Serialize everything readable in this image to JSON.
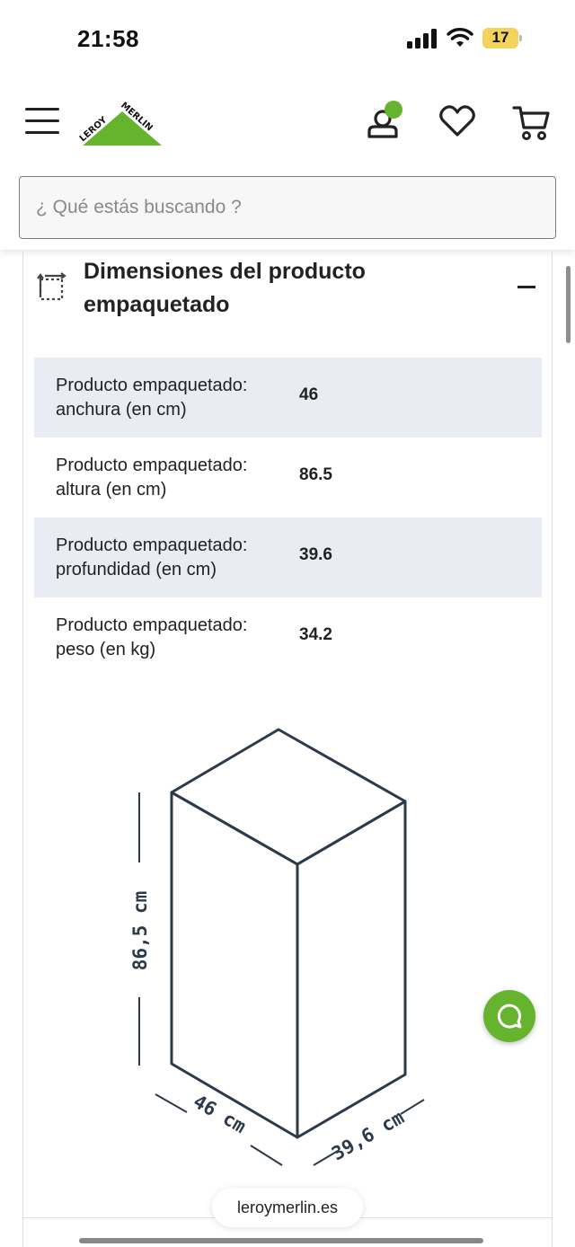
{
  "status_bar": {
    "time": "21:58",
    "battery": "17",
    "icons": [
      "signal-icon",
      "wifi-icon",
      "battery-icon"
    ]
  },
  "header": {
    "logo_text": "LEROY MERLIN",
    "brand_color": "#66b32e",
    "icons": [
      "menu-icon",
      "account-icon",
      "wishlist-icon",
      "cart-icon"
    ]
  },
  "search": {
    "placeholder": "¿ Qué estás buscando ?"
  },
  "section": {
    "title": "Dimensiones del producto empaquetado",
    "icon": "dimensions-icon",
    "rows": [
      {
        "label": "Producto empaquetado: anchura (en cm)",
        "value": "46"
      },
      {
        "label": "Producto empaquetado: altura (en cm)",
        "value": "86.5"
      },
      {
        "label": "Producto empaquetado: profundidad (en cm)",
        "value": "39.6"
      },
      {
        "label": "Producto empaquetado: peso (en kg)",
        "value": "34.2"
      }
    ],
    "diagram": {
      "height_label": "86,5 cm",
      "width_label": "46 cm",
      "depth_label": "39,6 cm"
    }
  },
  "browser": {
    "url": "leroymerlin.es"
  }
}
